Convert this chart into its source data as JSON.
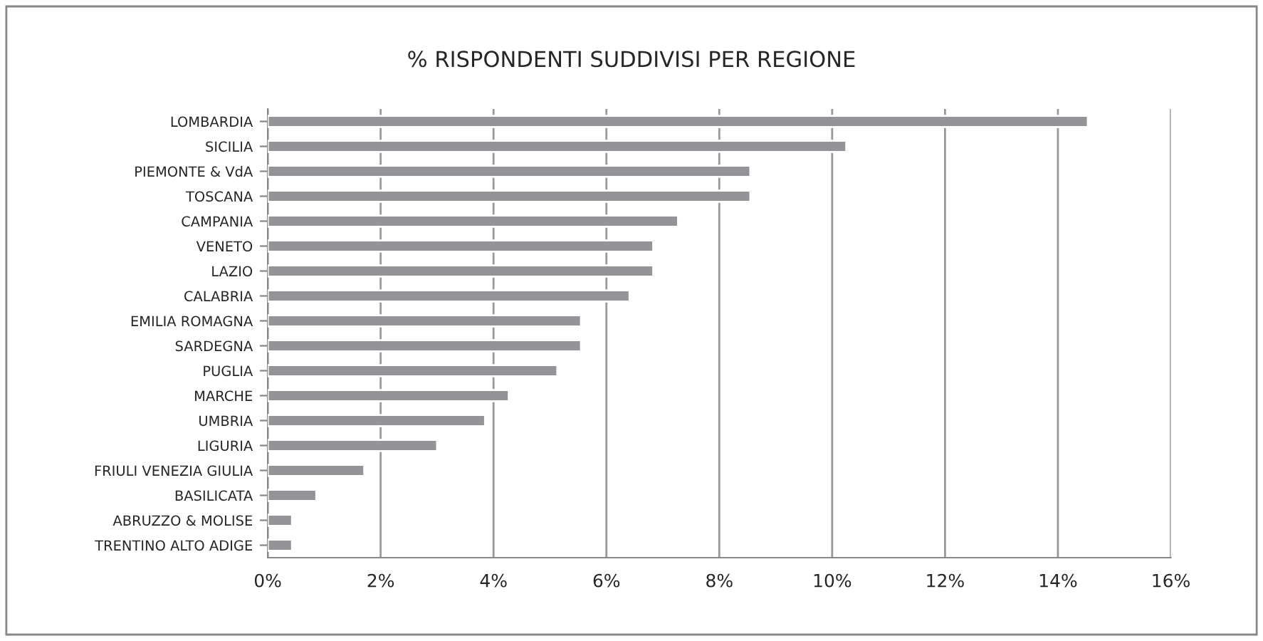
{
  "chart_data": {
    "type": "bar",
    "orientation": "horizontal",
    "title": "% RISPONDENTI SUDDIVISI PER REGIONE",
    "categories": [
      "LOMBARDIA",
      "SICILIA",
      "PIEMONTE & VdA",
      "TOSCANA",
      "CAMPANIA",
      "VENETO",
      "LAZIO",
      "CALABRIA",
      "EMILIA ROMAGNA",
      "SARDEGNA",
      "PUGLIA",
      "MARCHE",
      "UMBRIA",
      "LIGURIA",
      "FRIULI VENEZIA GIULIA",
      "BASILICATA",
      "ABRUZZO & MOLISE",
      "TRENTINO ALTO ADIGE"
    ],
    "values": [
      14.53,
      10.25,
      8.55,
      8.55,
      7.27,
      6.83,
      6.83,
      6.41,
      5.55,
      5.55,
      5.13,
      4.27,
      3.85,
      3.0,
      1.71,
      0.86,
      0.43,
      0.43
    ],
    "color": "#939398",
    "xlim": [
      0,
      16
    ],
    "xticks": [
      {
        "value": 0,
        "label": "0%"
      },
      {
        "value": 2,
        "label": "2%"
      },
      {
        "value": 4,
        "label": "4%"
      },
      {
        "value": 6,
        "label": "6%"
      },
      {
        "value": 8,
        "label": "8%"
      },
      {
        "value": 10,
        "label": "10%"
      },
      {
        "value": 12,
        "label": "12%"
      },
      {
        "value": 14,
        "label": "14%"
      },
      {
        "value": 16,
        "label": "16%"
      }
    ],
    "grid": "x",
    "legend": false
  }
}
